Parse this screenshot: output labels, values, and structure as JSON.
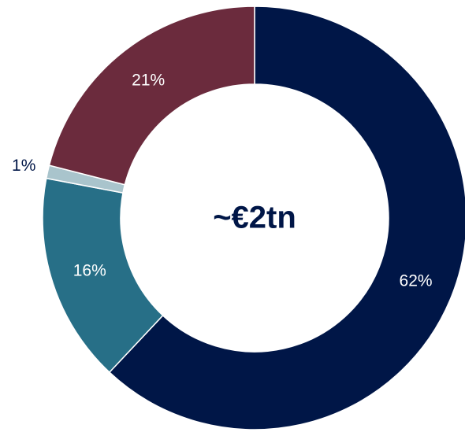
{
  "chart_data": {
    "type": "donut",
    "values": [
      62,
      16,
      1,
      21
    ],
    "value_labels": [
      "62%",
      "16%",
      "1%",
      "21%"
    ],
    "colors": [
      "#001647",
      "#276f87",
      "#a9c4cc",
      "#6b2b3d"
    ],
    "center_text": "~€2tn"
  }
}
